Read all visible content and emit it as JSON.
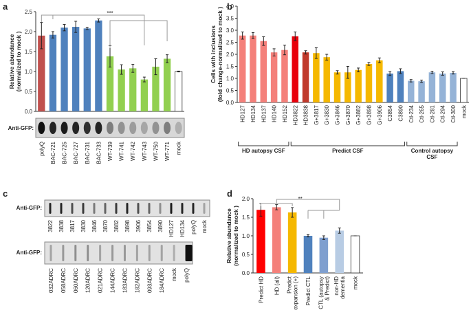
{
  "panel_labels": [
    "a",
    "b",
    "c",
    "d"
  ],
  "chart_data": [
    {
      "type": "bar",
      "ylabel": [
        "Relative abundance",
        "(normalized to mock )"
      ],
      "categories": [
        "polyQ",
        "BAC-721",
        "BAC-725",
        "BAC-727",
        "BAC-731",
        "BAC-733",
        "WT-739",
        "WT-741",
        "WT-742",
        "WT-743",
        "WT-750",
        "WT-771",
        "mock"
      ],
      "values": [
        1.9,
        1.92,
        2.1,
        2.12,
        2.08,
        2.28,
        1.38,
        1.05,
        1.08,
        0.8,
        1.12,
        1.32,
        1.0
      ],
      "errors": [
        0.33,
        0.08,
        0.08,
        0.14,
        0.03,
        0.04,
        0.27,
        0.12,
        0.1,
        0.06,
        0.2,
        0.1,
        0.01
      ],
      "colors": [
        "#c0504d",
        "#4f81bd",
        "#4f81bd",
        "#4f81bd",
        "#4f81bd",
        "#4f81bd",
        "#92d050",
        "#92d050",
        "#92d050",
        "#92d050",
        "#92d050",
        "#92d050",
        "#ffffff"
      ],
      "ylim": [
        0,
        2.5
      ],
      "yticks": [
        {
          "value": 0,
          "label": "0.0"
        },
        0.5,
        {
          "value": 1,
          "label": "1.0"
        },
        1.5,
        {
          "value": 2,
          "label": "2.0"
        },
        2.5
      ],
      "annotation": "***",
      "blot_label": "Anti-GFP:"
    },
    {
      "type": "bar",
      "ylabel": [
        "Cells with inclusions",
        "(fold change-normalized to mock )"
      ],
      "categories": [
        "HD127",
        "HD134",
        "HD137",
        "HD140",
        "HD152",
        "HD3822",
        "HD3838",
        "G+3817",
        "G+3830",
        "G+3846",
        "G+3870",
        "G+3882",
        "G+3898",
        "G+3906",
        "C3854",
        "C3890",
        "Ctl-234",
        "Ctl-265",
        "Ctl-281",
        "Ctl-294",
        "Ctl-300",
        "mock"
      ],
      "values": [
        2.78,
        2.78,
        2.55,
        2.08,
        2.18,
        2.75,
        2.08,
        2.05,
        1.88,
        1.25,
        1.25,
        1.35,
        1.6,
        1.75,
        1.2,
        1.3,
        0.9,
        0.88,
        1.25,
        1.2,
        1.23,
        1.0
      ],
      "errors": [
        0.15,
        0.12,
        0.18,
        0.15,
        0.2,
        0.18,
        0.07,
        0.22,
        0.12,
        0.07,
        0.25,
        0.08,
        0.06,
        0.1,
        0.08,
        0.1,
        0.05,
        0.05,
        0.05,
        0.07,
        0.05,
        0
      ],
      "colors": [
        "#f4807a",
        "#f4807a",
        "#f4807a",
        "#f4807a",
        "#f4807a",
        "#e8000b",
        "#c0392b",
        "#f5b800",
        "#f5b800",
        "#f5b800",
        "#f5b800",
        "#f5b800",
        "#f5b800",
        "#f5b800",
        "#4f81bd",
        "#4f81bd",
        "#95b3d7",
        "#95b3d7",
        "#95b3d7",
        "#95b3d7",
        "#95b3d7",
        "#ffffff"
      ],
      "ylim": [
        0,
        4
      ],
      "yticks": [
        {
          "value": 0,
          "label": "0.0"
        },
        0.5,
        {
          "value": 1,
          "label": "1.0"
        },
        1.5,
        {
          "value": 2,
          "label": "2.0"
        },
        2.5,
        {
          "value": 3,
          "label": "3.0"
        },
        3.5,
        {
          "value": 4,
          "label": "4.0"
        }
      ],
      "groups": [
        [
          "HD autopsy CSF"
        ],
        [
          "Predict CSF"
        ],
        [
          "Control autopsy",
          "CSF"
        ]
      ]
    },
    {
      "type": "bar",
      "ylabel": [
        "Relative abundance",
        "(normalized to mock )"
      ],
      "categories": [
        [
          "Predict HD"
        ],
        [
          "HD (all)"
        ],
        [
          "Predict",
          "expansion (+)"
        ],
        [
          "Predict CTL"
        ],
        [
          "CTL (autopsy",
          "& Predict)"
        ],
        [
          "non-HD",
          "dementia"
        ],
        [
          "mock"
        ]
      ],
      "values": [
        1.7,
        1.77,
        1.63,
        1.0,
        0.95,
        1.14,
        1.0
      ],
      "errors": [
        0.17,
        0.07,
        0.13,
        0.03,
        0.05,
        0.07,
        0
      ],
      "colors": [
        "#ff0000",
        "#f4807a",
        "#f5b800",
        "#4f81bd",
        "#7f9fcf",
        "#b8cce4",
        "#ffffff"
      ],
      "ylim": [
        0,
        2
      ],
      "yticks": [
        {
          "value": 0,
          "label": "0.0"
        },
        0.5,
        {
          "value": 1,
          "label": "1.0"
        },
        1.5,
        {
          "value": 2,
          "label": "2.0"
        }
      ],
      "annotation": "**"
    }
  ],
  "blots_c": [
    {
      "label": "Anti-GFP:",
      "lanes": [
        "3822",
        "3838",
        "3817",
        "3830",
        "3846",
        "3870",
        "3882",
        "3898",
        "3906",
        "3854",
        "3890",
        "HD127",
        "HD134",
        "polyQ",
        "mock"
      ]
    },
    {
      "label": "Anti-GFP:",
      "lanes": [
        "032ADRC",
        "058ADRC",
        "060ADRC",
        "120ADRC",
        "021ADRC",
        "144ADRC",
        "183ADRC",
        "182ADRC",
        "093ADRC",
        "184ADRC",
        "mock",
        "polyQ"
      ]
    }
  ]
}
